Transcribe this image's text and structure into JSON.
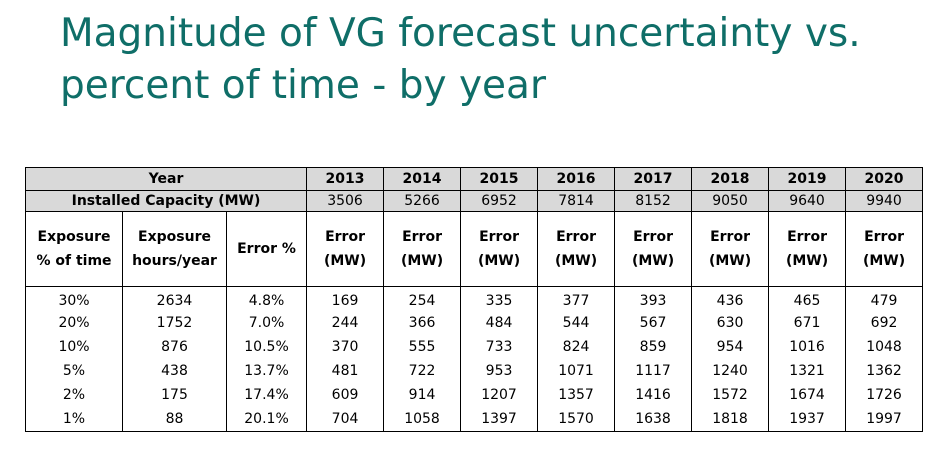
{
  "title": "Magnitude of VG forecast uncertainty vs. percent of time - by year",
  "table": {
    "year_label": "Year",
    "capacity_label": "Installed Capacity (MW)",
    "years": [
      "2013",
      "2014",
      "2015",
      "2016",
      "2017",
      "2018",
      "2019",
      "2020"
    ],
    "capacities": [
      "3506",
      "5266",
      "6952",
      "7814",
      "8152",
      "9050",
      "9640",
      "9940"
    ],
    "col_exposure_pct": [
      "Exposure",
      "% of time"
    ],
    "col_exposure_hours": [
      "Exposure",
      "hours/year"
    ],
    "col_error_pct": "Error %",
    "col_error_mw": [
      "Error",
      "(MW)"
    ],
    "rows": [
      {
        "pct": "30%",
        "hours": "2634",
        "err": "4.8%",
        "mw": [
          "169",
          "254",
          "335",
          "377",
          "393",
          "436",
          "465",
          "479"
        ]
      },
      {
        "pct": "20%",
        "hours": "1752",
        "err": "7.0%",
        "mw": [
          "244",
          "366",
          "484",
          "544",
          "567",
          "630",
          "671",
          "692"
        ]
      },
      {
        "pct": "10%",
        "hours": "876",
        "err": "10.5%",
        "mw": [
          "370",
          "555",
          "733",
          "824",
          "859",
          "954",
          "1016",
          "1048"
        ]
      },
      {
        "pct": "5%",
        "hours": "438",
        "err": "13.7%",
        "mw": [
          "481",
          "722",
          "953",
          "1071",
          "1117",
          "1240",
          "1321",
          "1362"
        ]
      },
      {
        "pct": "2%",
        "hours": "175",
        "err": "17.4%",
        "mw": [
          "609",
          "914",
          "1207",
          "1357",
          "1416",
          "1572",
          "1674",
          "1726"
        ]
      },
      {
        "pct": "1%",
        "hours": "88",
        "err": "20.1%",
        "mw": [
          "704",
          "1058",
          "1397",
          "1570",
          "1638",
          "1818",
          "1937",
          "1997"
        ]
      }
    ]
  }
}
